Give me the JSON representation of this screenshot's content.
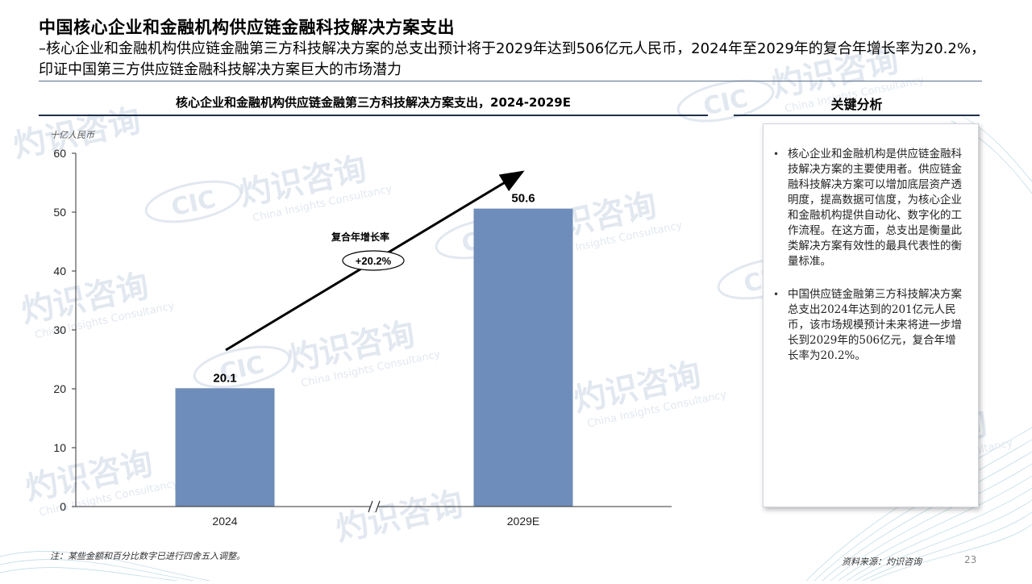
{
  "page": {
    "title": "中国核心企业和金融机构供应链金融科技解决方案支出",
    "subtitle": "–核心企业和金融机构供应链金融第三方科技解决方案的总支出预计将于2029年达到506亿元人民币，2024年至2029年的复合年增长率为20.2%，印证中国第三方供应链金融科技解决方案巨大的市场潜力",
    "footnote": "注：某些金额和百分比数字已进行四舍五入调整。",
    "source": "资料来源：灼识咨询",
    "page_number": "23"
  },
  "watermark": {
    "brand_cn": "灼识咨询",
    "brand_en": "China Insights Consultancy",
    "logo_text": "CIC"
  },
  "chart_data": {
    "type": "bar",
    "title": "核心企业和金融机构供应链金融第三方科技解决方案支出，2024-2029E",
    "unit": "十亿人民币",
    "categories": [
      "2024",
      "2029E"
    ],
    "values": [
      20.1,
      50.6
    ],
    "value_labels": [
      "20.1",
      "50.6"
    ],
    "ylim": [
      0,
      60
    ],
    "yticks": [
      0,
      10,
      20,
      30,
      40,
      50,
      60
    ],
    "bar_color": "#6f8dba",
    "axis_break": true,
    "cagr": {
      "label": "复合年增长率",
      "value": "+20.2%"
    },
    "grid": false,
    "xlabel": "",
    "ylabel": ""
  },
  "key_points": {
    "title": "关键分析",
    "items": [
      "核心企业和金融机构是供应链金融科技解决方案的主要使用者。供应链金融科技解决方案可以增加底层资产透明度，提高数据可信度，为核心企业和金融机构提供自动化、数字化的工作流程。在这方面，总支出是衡量此类解决方案有效性的最具代表性的衡量标准。",
      "中国供应链金融第三方科技解决方案总支出2024年达到的201亿元人民币，该市场规模预计未来将进一步增长到2029年的506亿元，复合年增长率为20.2%。"
    ]
  }
}
